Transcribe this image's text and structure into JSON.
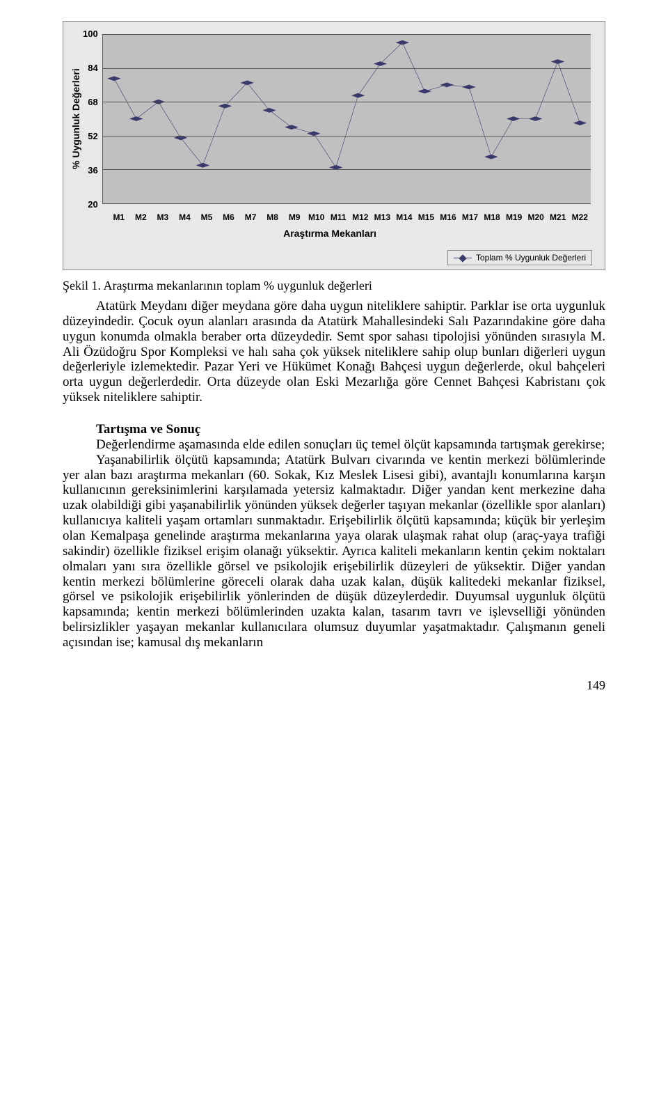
{
  "chart": {
    "type": "line",
    "ylabel": "% Uygunluk Değerleri",
    "xlabel": "Araştırma Mekanları",
    "legend": "Toplam % Uygunluk Değerleri",
    "ylim": [
      20,
      100
    ],
    "yticks": [
      100,
      84,
      68,
      52,
      36,
      20
    ],
    "categories": [
      "M1",
      "M2",
      "M3",
      "M4",
      "M5",
      "M6",
      "M7",
      "M8",
      "M9",
      "M10",
      "M11",
      "M12",
      "M13",
      "M14",
      "M15",
      "M16",
      "M17",
      "M18",
      "M19",
      "M20",
      "M21",
      "M22"
    ],
    "values": [
      79,
      60,
      68,
      51,
      38,
      66,
      77,
      64,
      56,
      53,
      37,
      71,
      86,
      96,
      73,
      76,
      75,
      42,
      60,
      60,
      87,
      58
    ],
    "line_color": "#39396b",
    "marker_color": "#39396b",
    "marker_size": 8,
    "plot_background": "#c0c0c0",
    "panel_background": "#e8e8e8",
    "grid_color": "#555555",
    "font_family_axis": "Arial",
    "axis_fontsize": 13,
    "label_fontsize": 14
  },
  "caption": "Şekil 1. Araştırma mekanlarının toplam % uygunluk değerleri",
  "para1": "Atatürk Meydanı diğer meydana göre daha uygun niteliklere sahiptir. Parklar ise orta uygunluk düzeyindedir. Çocuk oyun alanları arasında da Atatürk Mahallesindeki Salı Pazarındakine göre daha uygun konumda olmakla beraber orta düzeydedir. Semt spor sahası tipolojisi yönünden sırasıyla M. Ali Özüdoğru Spor Kompleksi ve halı saha çok yüksek niteliklere sahip olup bunları diğerleri uygun değerleriyle izlemektedir. Pazar Yeri ve Hükümet Konağı Bahçesi uygun değerlerde, okul bahçeleri orta uygun değerlerdedir. Orta düzeyde olan Eski Mezarlığa göre Cennet Bahçesi Kabristanı çok yüksek niteliklere sahiptir.",
  "heading2": "Tartışma ve Sonuç",
  "para2": "Değerlendirme aşamasında elde edilen sonuçları üç temel ölçüt kapsamında tartışmak gerekirse;",
  "para3": "Yaşanabilirlik ölçütü kapsamında; Atatürk Bulvarı civarında ve kentin merkezi bölümlerinde yer alan bazı araştırma mekanları (60. Sokak, Kız Meslek Lisesi gibi), avantajlı konumlarına karşın kullanıcının gereksinimlerini karşılamada yetersiz kalmaktadır. Diğer yandan kent merkezine daha uzak olabildiği gibi yaşanabilirlik yönünden yüksek değerler taşıyan mekanlar (özellikle spor alanları) kullanıcıya kaliteli yaşam ortamları sunmaktadır. Erişebilirlik ölçütü kapsamında; küçük bir yerleşim olan Kemalpaşa genelinde araştırma mekanlarına yaya olarak ulaşmak rahat olup (araç-yaya trafiği sakindir) özellikle fiziksel erişim olanağı yüksektir. Ayrıca kaliteli mekanların kentin çekim noktaları olmaları yanı sıra özellikle görsel ve psikolojik erişebilirlik düzeyleri de yüksektir. Diğer yandan kentin merkezi bölümlerine göreceli olarak daha uzak kalan, düşük kalitedeki mekanlar fiziksel, görsel ve psikolojik erişebilirlik yönlerinden de düşük düzeylerdedir. Duyumsal uygunluk ölçütü kapsamında; kentin merkezi bölümlerinden uzakta kalan, tasarım tavrı ve işlevselliği yönünden belirsizlikler yaşayan mekanlar kullanıcılara olumsuz duyumlar yaşatmaktadır. Çalışmanın geneli açısından ise; kamusal dış mekanların",
  "page_number": "149"
}
